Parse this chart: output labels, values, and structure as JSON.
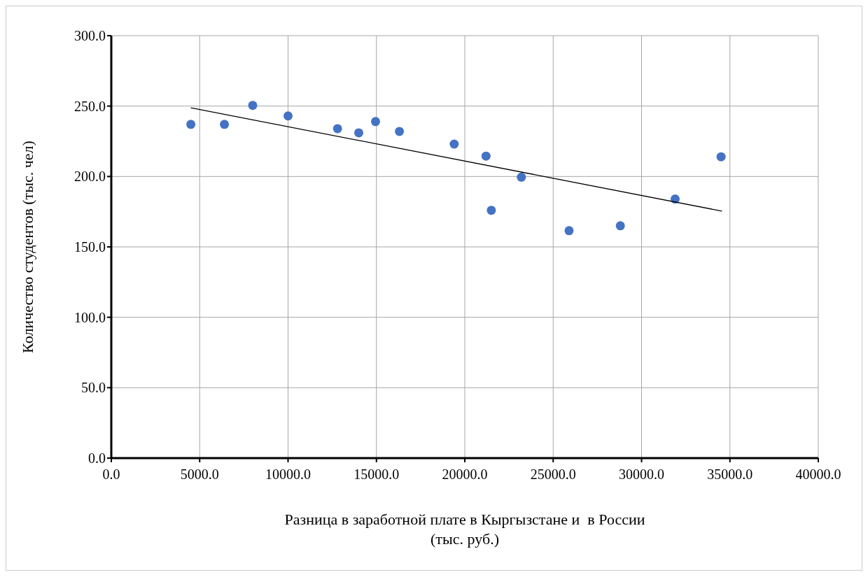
{
  "chart_data": {
    "type": "scatter",
    "xlabel": "Разница в заработной плате в Кыргызстане и  в России\n(тыс. руб.)",
    "ylabel": "Количество студентов (тыс. чел)",
    "xlim": [
      0,
      40000
    ],
    "xticks": [
      {
        "value": 0,
        "label": "0.0"
      },
      {
        "value": 5000,
        "label": "5000.0"
      },
      {
        "value": 10000,
        "label": "10000.0"
      },
      {
        "value": 15000,
        "label": "15000.0"
      },
      {
        "value": 20000,
        "label": "20000.0"
      },
      {
        "value": 25000,
        "label": "25000.0"
      },
      {
        "value": 30000,
        "label": "30000.0"
      },
      {
        "value": 35000,
        "label": "35000.0"
      },
      {
        "value": 40000,
        "label": "40000.0"
      }
    ],
    "ylim": [
      0,
      300
    ],
    "yticks": [
      {
        "value": 0,
        "label": "0.0"
      },
      {
        "value": 50,
        "label": "50.0"
      },
      {
        "value": 100,
        "label": "100.0"
      },
      {
        "value": 150,
        "label": "150.0"
      },
      {
        "value": 200,
        "label": "200.0"
      },
      {
        "value": 250,
        "label": "250.0"
      },
      {
        "value": 300,
        "label": "300.0"
      }
    ],
    "grid": true,
    "series": [
      {
        "marker": "circle",
        "color": "#4472c4",
        "x": [
          4500,
          6400,
          8000,
          10000,
          12800,
          14000,
          14950,
          16300,
          19400,
          21200,
          21500,
          23200,
          25900,
          28800,
          31900,
          34500
        ],
        "values": [
          237,
          237,
          250.5,
          243,
          234,
          231,
          239,
          232,
          223,
          214.5,
          176,
          199.5,
          161.5,
          165,
          184,
          214
        ]
      },
      {
        "type": "line",
        "color": "#000000",
        "x": [
          4500,
          34550
        ],
        "values": [
          248.8,
          175.4
        ]
      }
    ]
  }
}
